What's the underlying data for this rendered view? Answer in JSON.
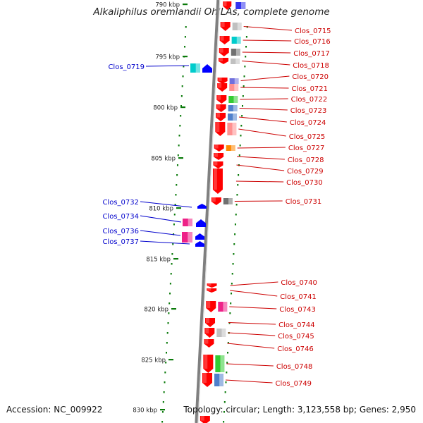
{
  "title": "Alkaliphilus oremlandii OhILAs, complete genome",
  "footer": {
    "accession": "Accession: NC_009922",
    "summary": "Topology: circular; Length: 3,123,558 bp; Genes: 2,950"
  },
  "colors": {
    "backbone": "#7f7f7f",
    "forward_gene": "#ff0000",
    "reverse_gene": "#0000ff",
    "forward_label": "#cc0000",
    "reverse_label": "#0000cc",
    "tick": "#0a7a0a"
  },
  "scale_ticks": [
    {
      "label": "790 kbp"
    },
    {
      "label": "795 kbp"
    },
    {
      "label": "800 kbp"
    },
    {
      "label": "805 kbp"
    },
    {
      "label": "810 kbp"
    },
    {
      "label": "815 kbp"
    },
    {
      "label": "820 kbp"
    },
    {
      "label": "825 kbp"
    },
    {
      "label": "830 kbp"
    }
  ],
  "forward_genes": [
    {
      "id": "Clos_0715",
      "cog_color": "#c0c0c0"
    },
    {
      "id": "Clos_0716",
      "cog_color": "#00cccc"
    },
    {
      "id": "Clos_0717",
      "cog_color": "#707070"
    },
    {
      "id": "Clos_0718",
      "cog_color": "#c0c0c0"
    },
    {
      "id": "Clos_0720",
      "cog_color": "#7070dd"
    },
    {
      "id": "Clos_0721",
      "cog_color": "#ff9090"
    },
    {
      "id": "Clos_0722",
      "cog_color": "#33cc33"
    },
    {
      "id": "Clos_0723",
      "cog_color": "#5080cc"
    },
    {
      "id": "Clos_0724",
      "cog_color": "#5080cc"
    },
    {
      "id": "Clos_0725",
      "cog_color": "#ff9090"
    },
    {
      "id": "Clos_0727",
      "cog_color": "#ff8800"
    },
    {
      "id": "Clos_0728",
      "cog_color": ""
    },
    {
      "id": "Clos_0729",
      "cog_color": ""
    },
    {
      "id": "Clos_0730",
      "cog_color": ""
    },
    {
      "id": "Clos_0731",
      "cog_color": "#707070"
    },
    {
      "id": "Clos_0740",
      "cog_color": ""
    },
    {
      "id": "Clos_0741",
      "cog_color": ""
    },
    {
      "id": "Clos_0743",
      "cog_color": "#ee2288"
    },
    {
      "id": "Clos_0744",
      "cog_color": ""
    },
    {
      "id": "Clos_0745",
      "cog_color": "#c0c0c0"
    },
    {
      "id": "Clos_0746",
      "cog_color": ""
    },
    {
      "id": "Clos_0748",
      "cog_color": "#33cc33"
    },
    {
      "id": "Clos_0749",
      "cog_color": "#5080cc"
    }
  ],
  "reverse_genes": [
    {
      "id": "Clos_0719",
      "cog_color": "#00cccc"
    },
    {
      "id": "Clos_0732",
      "cog_color": ""
    },
    {
      "id": "Clos_0734",
      "cog_color": "#ee2288"
    },
    {
      "id": "Clos_0736",
      "cog_color": "#ee2288"
    },
    {
      "id": "Clos_0737",
      "cog_color": ""
    }
  ]
}
